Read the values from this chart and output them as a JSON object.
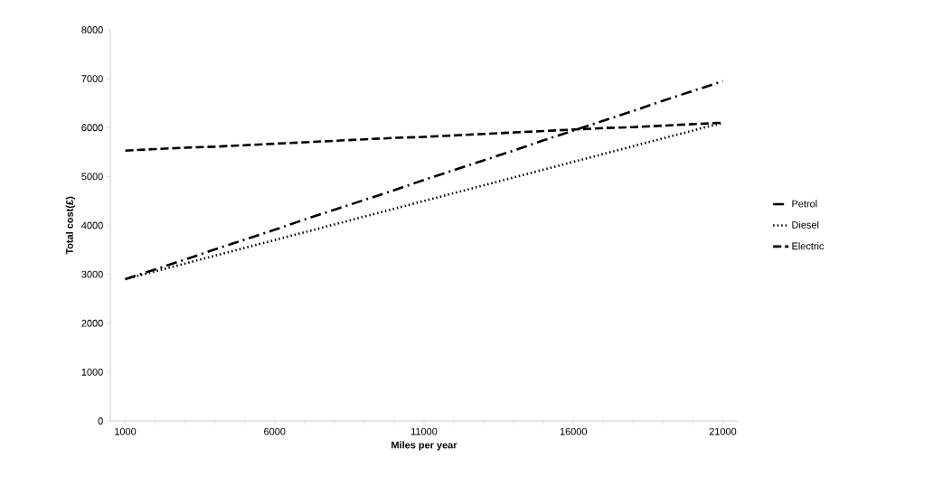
{
  "chart_data": {
    "type": "line",
    "xlabel": "Miles per year",
    "ylabel": "Total cost(£)",
    "categories": [
      "1000",
      null,
      null,
      null,
      null,
      "6000",
      null,
      null,
      null,
      null,
      "11000",
      null,
      null,
      null,
      null,
      "16000",
      null,
      null,
      null,
      null,
      "21000"
    ],
    "series": [
      {
        "name": "Petrol",
        "color": "#000000",
        "line_style": "dashdot",
        "values": [
          2900,
          3100,
          3300,
          3510,
          3710,
          3910,
          4120,
          4320,
          4520,
          4720,
          4930,
          5130,
          5330,
          5530,
          5740,
          5940,
          6140,
          6340,
          6550,
          6750,
          6950
        ]
      },
      {
        "name": "Diesel",
        "color": "#000000",
        "line_style": "dotted",
        "values": [
          2900,
          3060,
          3220,
          3380,
          3540,
          3700,
          3860,
          4020,
          4180,
          4340,
          4500,
          4660,
          4820,
          4980,
          5140,
          5300,
          5460,
          5620,
          5780,
          5940,
          6100
        ]
      },
      {
        "name": "Electric",
        "color": "#000000",
        "line_style": "dashed",
        "values": [
          5530,
          5560,
          5590,
          5610,
          5640,
          5670,
          5700,
          5730,
          5760,
          5790,
          5810,
          5840,
          5870,
          5900,
          5930,
          5960,
          5990,
          6010,
          6040,
          6070,
          6100
        ]
      }
    ],
    "ylim": [
      0,
      8000
    ],
    "yticks": [
      0,
      1000,
      2000,
      3000,
      4000,
      5000,
      6000,
      7000,
      8000
    ],
    "grid": false,
    "legend": "right",
    "marker": "none"
  }
}
